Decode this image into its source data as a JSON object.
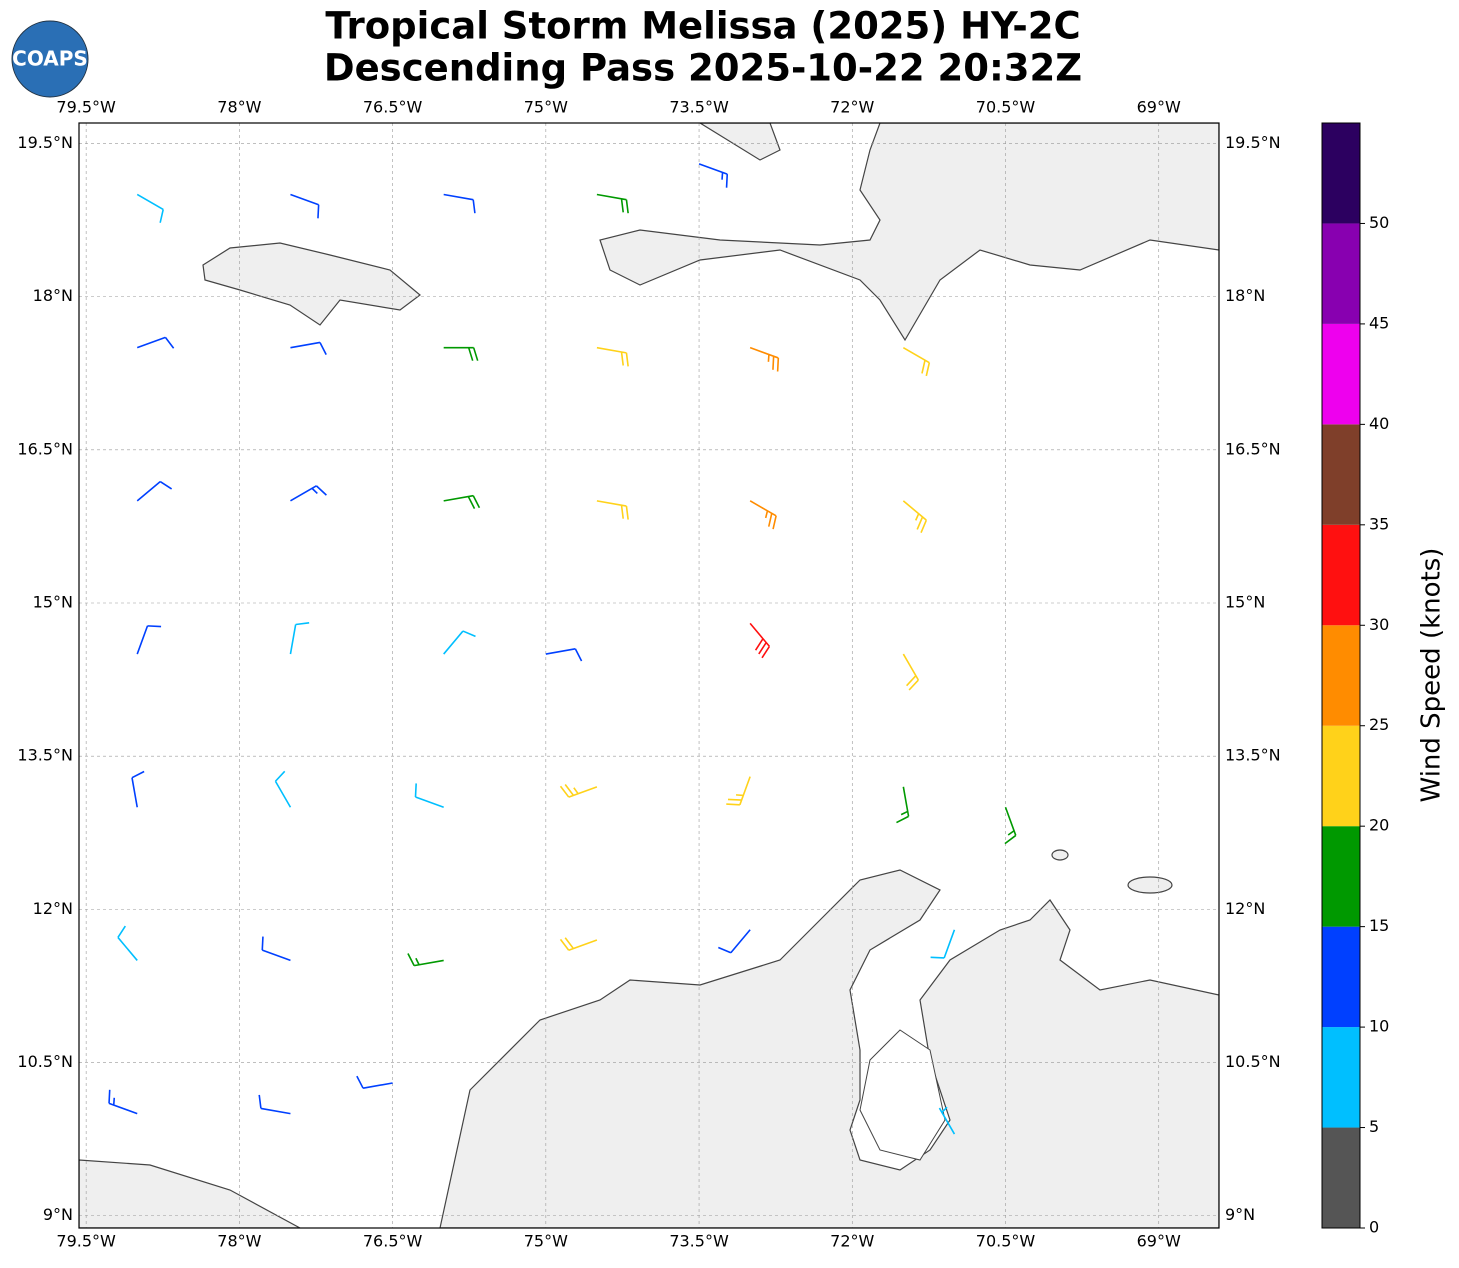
{
  "logo": "COAPS",
  "chart_data": {
    "type": "barb-map",
    "title": "Tropical Storm Melissa (2025) HY-2C",
    "subtitle": "Descending Pass 2025-10-22 20:32Z",
    "xlim": [
      -79.57,
      -68.41
    ],
    "ylim": [
      8.88,
      19.7
    ],
    "xticks": [
      {
        "value": -79.5,
        "label": "79.5°W"
      },
      {
        "value": -78,
        "label": "78°W"
      },
      {
        "value": -76.5,
        "label": "76.5°W"
      },
      {
        "value": -75,
        "label": "75°W"
      },
      {
        "value": -73.5,
        "label": "73.5°W"
      },
      {
        "value": -72,
        "label": "72°W"
      },
      {
        "value": -70.5,
        "label": "70.5°W"
      },
      {
        "value": -69,
        "label": "69°W"
      }
    ],
    "yticks": [
      {
        "value": 9,
        "label": "9°N"
      },
      {
        "value": 10.5,
        "label": "10.5°N"
      },
      {
        "value": 12,
        "label": "12°N"
      },
      {
        "value": 13.5,
        "label": "13.5°N"
      },
      {
        "value": 15,
        "label": "15°N"
      },
      {
        "value": 16.5,
        "label": "16.5°N"
      },
      {
        "value": 18,
        "label": "18°N"
      },
      {
        "value": 19.5,
        "label": "19.5°N"
      }
    ],
    "grid": true,
    "barbs": {
      "lon": [
        -79,
        -77.5,
        -76,
        -74.5,
        -73.5,
        -79,
        -77.5,
        -76,
        -74.5,
        -73,
        -71.5,
        -79,
        -77.5,
        -76,
        -74.5,
        -73,
        -71.5,
        -79,
        -77.5,
        -76,
        -75,
        -73,
        -71.5,
        -79,
        -77.5,
        -76,
        -74.5,
        -73,
        -71.5,
        -70.5,
        -79,
        -77.5,
        -76,
        -74.5,
        -73,
        -71,
        -79,
        -77.5,
        -76.5,
        -71
      ],
      "lat": [
        19,
        19,
        19,
        19,
        19.3,
        17.5,
        17.5,
        17.5,
        17.5,
        17.5,
        17.5,
        16,
        16,
        16,
        16,
        16,
        16,
        14.5,
        14.5,
        14.5,
        14.5,
        14.8,
        14.5,
        13,
        13,
        13,
        13.2,
        13.3,
        13.2,
        13,
        11.5,
        11.5,
        11.5,
        11.7,
        11.8,
        11.8,
        10,
        10,
        10.3,
        9.8
      ],
      "speed": [
        8,
        12,
        12,
        18,
        14,
        12,
        12,
        18,
        22,
        26,
        22,
        12,
        14,
        18,
        22,
        27,
        24,
        12,
        8,
        8,
        10,
        32,
        22,
        12,
        8,
        8,
        24,
        24,
        16,
        16,
        8,
        10,
        16,
        22,
        12,
        8,
        14,
        12,
        12,
        7
      ],
      "direction": [
        120,
        110,
        100,
        100,
        110,
        70,
        80,
        90,
        100,
        110,
        120,
        50,
        60,
        80,
        100,
        120,
        130,
        20,
        10,
        40,
        80,
        140,
        150,
        350,
        330,
        290,
        250,
        200,
        170,
        160,
        320,
        290,
        260,
        250,
        220,
        200,
        290,
        280,
        260,
        330
      ]
    },
    "colorbar": {
      "label": "Wind Speed (knots)",
      "bounds": [
        0,
        5,
        10,
        15,
        20,
        25,
        30,
        35,
        40,
        45,
        50,
        55
      ],
      "colors": [
        "#555555",
        "#00bfff",
        "#0040ff",
        "#009900",
        "#ffd21a",
        "#ff8c00",
        "#ff1010",
        "#7f3f2a",
        "#ee00ee",
        "#8800b0",
        "#2c0060"
      ],
      "ticks": [
        0,
        5,
        10,
        15,
        20,
        25,
        30,
        35,
        40,
        45,
        50
      ]
    }
  }
}
